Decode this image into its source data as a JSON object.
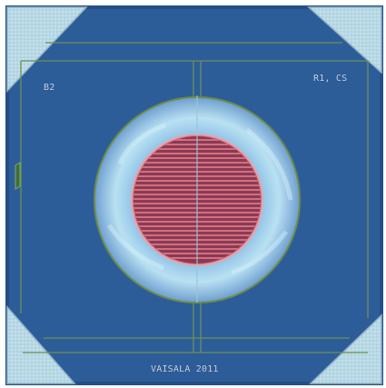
{
  "image": {
    "kind": "microscope photo of sensor chip",
    "labels": {
      "top_left": "B2",
      "top_right": "R1, CS",
      "bottom": "VAISALA 2011"
    },
    "colors": {
      "die_blue": "#2f5f9a",
      "die_blue_dark": "#24528b",
      "corner_pad": "#b9dbe7",
      "ring_light": "#bfe3f0",
      "ring_mid": "#6fa8d8",
      "heater_red": "#d86b79",
      "heater_stripe": "#7c2f46",
      "trace_green": "#6b8f52"
    }
  }
}
